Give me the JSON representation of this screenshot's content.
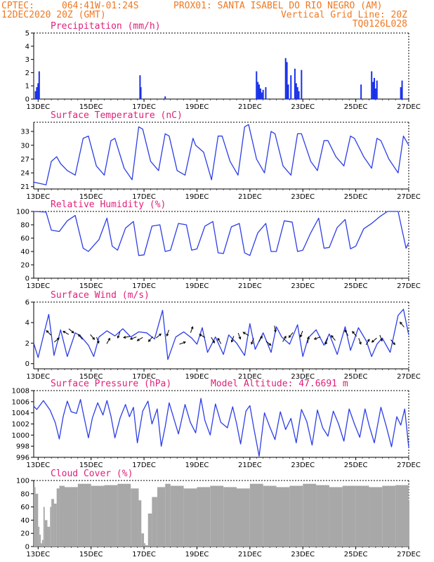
{
  "header": {
    "line1_left": "CPTEC:",
    "line1_coords": "064:41W-01:24S",
    "line1_station": "PROX01: SANTA ISABEL DO RIO NEGRO (AM)",
    "line2_left": "12DEC2020 20Z (GMT)",
    "line2_right": "Vertical Grid Line: 20Z",
    "line3_right": "TQ0126L028"
  },
  "colors": {
    "header_text": "#f07820",
    "panel_title": "#e0207a",
    "series_line": "#2d3ee6",
    "precip_bar": "#1830e8",
    "cloud_bar": "#a8a8a8",
    "wind_arrow": "#000000",
    "axis": "#000000"
  },
  "x_axis": {
    "start_time": "12DEC2020 20Z",
    "start_day": 12.833,
    "end_day": 27.0,
    "tick_days": [
      13,
      15,
      17,
      19,
      21,
      23,
      25,
      27
    ],
    "tick_labels": [
      "13DEC",
      "15DEC",
      "17DEC",
      "19DEC",
      "21DEC",
      "23DEC",
      "25DEC",
      "27DEC"
    ]
  },
  "chart_data": [
    {
      "id": "precip",
      "type": "bar",
      "title": "Precipitation (mm/h)",
      "ylim": [
        0,
        5
      ],
      "yticks": [
        0,
        1,
        2,
        3,
        4,
        5
      ],
      "grid": false,
      "x": [
        12.9,
        12.95,
        13.0,
        13.04,
        16.85,
        16.88,
        17.8,
        21.25,
        21.3,
        21.35,
        21.4,
        21.45,
        21.5,
        21.6,
        22.35,
        22.4,
        22.45,
        22.55,
        22.7,
        22.75,
        22.8,
        22.85,
        22.95,
        25.2,
        25.6,
        25.65,
        25.7,
        25.75,
        25.8,
        26.7,
        26.75
      ],
      "values": [
        0.6,
        0.9,
        1.2,
        2.1,
        1.8,
        0.9,
        0.2,
        2.1,
        1.3,
        1.1,
        0.8,
        0.5,
        0.7,
        0.9,
        3.1,
        2.8,
        1.1,
        1.8,
        2.3,
        1.2,
        0.9,
        0.6,
        2.2,
        1.1,
        2.1,
        1.3,
        1.6,
        0.8,
        1.4,
        0.9,
        1.4
      ]
    },
    {
      "id": "temperature",
      "type": "line",
      "title": "Surface Temperature (nC)",
      "ylim": [
        20.5,
        35
      ],
      "yticks": [
        21,
        24,
        27,
        30,
        33
      ],
      "grid": false,
      "x": [
        12.833,
        13.3,
        13.5,
        13.7,
        13.85,
        14.1,
        14.4,
        14.7,
        14.9,
        15.2,
        15.5,
        15.75,
        15.9,
        16.25,
        16.55,
        16.8,
        16.95,
        17.25,
        17.55,
        17.8,
        17.95,
        18.25,
        18.55,
        18.85,
        18.95,
        19.25,
        19.55,
        19.8,
        19.95,
        20.25,
        20.55,
        20.8,
        20.95,
        21.25,
        21.55,
        21.8,
        21.95,
        22.25,
        22.55,
        22.8,
        22.95,
        23.3,
        23.55,
        23.8,
        23.95,
        24.25,
        24.55,
        24.8,
        24.95,
        25.3,
        25.6,
        25.8,
        25.95,
        26.25,
        26.6,
        26.8,
        27.0
      ],
      "values": [
        22.0,
        21.4,
        26.5,
        27.5,
        26.0,
        24.5,
        23.5,
        31.5,
        32.0,
        25.5,
        23.5,
        31.0,
        31.5,
        25.0,
        22.5,
        34.0,
        33.5,
        26.5,
        24.5,
        32.5,
        32.0,
        24.5,
        23.5,
        31.5,
        30.0,
        28.5,
        22.5,
        32.0,
        32.0,
        26.5,
        23.5,
        34.0,
        34.5,
        27.0,
        24.0,
        33.0,
        32.5,
        25.5,
        23.5,
        32.5,
        32.5,
        26.5,
        24.5,
        31.0,
        31.0,
        27.5,
        25.5,
        32.0,
        31.5,
        27.5,
        25.0,
        31.5,
        31.0,
        27.0,
        24.0,
        32.0,
        30.0
      ]
    },
    {
      "id": "humidity",
      "type": "line",
      "title": "Relative Humidity (%)",
      "ylim": [
        0,
        100
      ],
      "yticks": [
        0,
        20,
        40,
        60,
        80,
        100
      ],
      "grid": false,
      "x": [
        12.833,
        13.3,
        13.5,
        13.8,
        14.1,
        14.4,
        14.7,
        14.9,
        15.3,
        15.6,
        15.8,
        16.0,
        16.3,
        16.6,
        16.8,
        17.0,
        17.3,
        17.6,
        17.8,
        18.0,
        18.3,
        18.6,
        18.8,
        19.0,
        19.3,
        19.6,
        19.8,
        20.0,
        20.3,
        20.6,
        20.8,
        21.0,
        21.3,
        21.6,
        21.8,
        22.0,
        22.3,
        22.6,
        22.8,
        23.0,
        23.3,
        23.6,
        23.8,
        24.0,
        24.3,
        24.6,
        24.8,
        25.0,
        25.3,
        25.6,
        25.9,
        26.2,
        26.6,
        26.75,
        26.9,
        27.0
      ],
      "values": [
        100.0,
        99.0,
        72.0,
        70.0,
        86.0,
        94.0,
        45.0,
        40.0,
        58.0,
        90.0,
        48.0,
        42.0,
        75.0,
        85.0,
        34.0,
        35.0,
        78.0,
        80.0,
        40.0,
        42.0,
        82.0,
        80.0,
        42.0,
        44.0,
        78.0,
        85.0,
        38.0,
        37.0,
        77.0,
        82.0,
        38.0,
        34.0,
        68.0,
        82.0,
        40.0,
        40.0,
        86.0,
        84.0,
        40.0,
        42.0,
        68.0,
        90.0,
        45.0,
        46.0,
        76.0,
        88.0,
        44.0,
        48.0,
        74.0,
        82.0,
        92.0,
        100.0,
        100.0,
        72.0,
        45.0,
        53.0
      ]
    },
    {
      "id": "wind",
      "type": "line",
      "title": "Surface Wind (m/s)",
      "ylim": [
        -0.5,
        6
      ],
      "yticks": [
        0,
        2,
        4,
        6
      ],
      "grid": false,
      "x": [
        12.833,
        13.0,
        13.2,
        13.4,
        13.6,
        13.85,
        14.1,
        14.4,
        14.6,
        14.9,
        15.1,
        15.3,
        15.6,
        15.9,
        16.2,
        16.5,
        16.8,
        17.1,
        17.4,
        17.7,
        17.9,
        18.2,
        18.5,
        18.8,
        19.0,
        19.2,
        19.4,
        19.7,
        20.0,
        20.2,
        20.5,
        20.8,
        21.0,
        21.2,
        21.5,
        21.8,
        22.0,
        22.2,
        22.5,
        22.8,
        23.0,
        23.2,
        23.5,
        23.8,
        24.0,
        24.3,
        24.6,
        24.8,
        25.1,
        25.4,
        25.6,
        25.8,
        26.0,
        26.3,
        26.6,
        26.8,
        27.0
      ],
      "values": [
        2.0,
        0.6,
        2.7,
        4.8,
        0.8,
        3.3,
        0.7,
        3.0,
        2.7,
        1.8,
        0.7,
        2.6,
        3.2,
        2.7,
        3.4,
        2.6,
        3.1,
        3.0,
        2.4,
        5.2,
        0.4,
        2.6,
        3.1,
        2.5,
        1.9,
        3.5,
        1.1,
        2.6,
        0.9,
        2.8,
        2.0,
        0.8,
        3.9,
        1.4,
        3.0,
        1.1,
        3.6,
        2.6,
        1.9,
        3.8,
        0.7,
        2.5,
        3.3,
        1.8,
        2.9,
        0.9,
        3.6,
        1.3,
        3.5,
        2.2,
        0.7,
        1.9,
        2.5,
        1.1,
        4.7,
        5.3,
        2.8
      ],
      "arrows": [
        {
          "x": 13.4,
          "y": 3.0,
          "dir": 315
        },
        {
          "x": 13.7,
          "y": 2.3,
          "dir": 50
        },
        {
          "x": 14.05,
          "y": 3.0,
          "dir": 300
        },
        {
          "x": 14.25,
          "y": 3.2,
          "dir": 130
        },
        {
          "x": 14.6,
          "y": 2.6,
          "dir": 320
        },
        {
          "x": 15.05,
          "y": 2.6,
          "dir": 140
        },
        {
          "x": 15.25,
          "y": 2.3,
          "dir": 160
        },
        {
          "x": 15.65,
          "y": 2.2,
          "dir": 30
        },
        {
          "x": 16.05,
          "y": 2.8,
          "dir": 200
        },
        {
          "x": 16.35,
          "y": 2.6,
          "dir": 260
        },
        {
          "x": 16.6,
          "y": 2.5,
          "dir": 250
        },
        {
          "x": 16.85,
          "y": 2.4,
          "dir": 240
        },
        {
          "x": 17.25,
          "y": 2.4,
          "dir": 220
        },
        {
          "x": 17.55,
          "y": 2.7,
          "dir": 50
        },
        {
          "x": 17.9,
          "y": 3.0,
          "dir": 200
        },
        {
          "x": 18.45,
          "y": 2.0,
          "dir": 70
        },
        {
          "x": 18.8,
          "y": 3.3,
          "dir": 20
        },
        {
          "x": 19.2,
          "y": 2.7,
          "dir": 300
        },
        {
          "x": 19.6,
          "y": 2.3,
          "dir": 150
        },
        {
          "x": 19.85,
          "y": 2.2,
          "dir": 330
        },
        {
          "x": 20.35,
          "y": 2.4,
          "dir": 200
        },
        {
          "x": 20.6,
          "y": 2.7,
          "dir": 160
        },
        {
          "x": 20.85,
          "y": 2.9,
          "dir": 300
        },
        {
          "x": 21.1,
          "y": 2.2,
          "dir": 200
        },
        {
          "x": 21.4,
          "y": 2.4,
          "dir": 30
        },
        {
          "x": 21.7,
          "y": 2.0,
          "dir": 130
        },
        {
          "x": 21.95,
          "y": 3.4,
          "dir": 170
        },
        {
          "x": 22.3,
          "y": 2.4,
          "dir": 30
        },
        {
          "x": 22.55,
          "y": 2.8,
          "dir": 220
        },
        {
          "x": 22.95,
          "y": 2.9,
          "dir": 200
        },
        {
          "x": 23.2,
          "y": 2.3,
          "dir": 10
        },
        {
          "x": 23.55,
          "y": 2.5,
          "dir": 250
        },
        {
          "x": 23.9,
          "y": 2.2,
          "dir": 200
        },
        {
          "x": 24.15,
          "y": 2.5,
          "dir": 320
        },
        {
          "x": 24.65,
          "y": 3.0,
          "dir": 330
        },
        {
          "x": 24.95,
          "y": 2.9,
          "dir": 320
        },
        {
          "x": 25.15,
          "y": 2.2,
          "dir": 160
        },
        {
          "x": 25.45,
          "y": 2.1,
          "dir": 30
        },
        {
          "x": 25.7,
          "y": 2.3,
          "dir": 230
        },
        {
          "x": 25.95,
          "y": 2.5,
          "dir": 160
        },
        {
          "x": 26.4,
          "y": 2.1,
          "dir": 140
        },
        {
          "x": 26.75,
          "y": 3.8,
          "dir": 320
        }
      ]
    },
    {
      "id": "pressure",
      "type": "line",
      "title": "Surface Pressure (hPa)",
      "subtitle": "Model Altitude: 47.6691 m",
      "ylim": [
        996,
        1008
      ],
      "yticks": [
        996,
        998,
        1000,
        1002,
        1004,
        1006,
        1008
      ],
      "grid": false,
      "x": [
        12.833,
        12.95,
        13.2,
        13.45,
        13.65,
        13.8,
        13.95,
        14.1,
        14.25,
        14.45,
        14.6,
        14.7,
        14.9,
        15.05,
        15.25,
        15.45,
        15.6,
        15.75,
        15.9,
        16.1,
        16.3,
        16.45,
        16.6,
        16.75,
        16.95,
        17.15,
        17.3,
        17.5,
        17.65,
        17.8,
        17.95,
        18.15,
        18.3,
        18.55,
        18.75,
        18.95,
        19.15,
        19.3,
        19.5,
        19.7,
        19.9,
        20.15,
        20.35,
        20.5,
        20.65,
        20.85,
        21.0,
        21.15,
        21.35,
        21.55,
        21.75,
        21.95,
        22.15,
        22.35,
        22.55,
        22.75,
        22.95,
        23.15,
        23.35,
        23.55,
        23.75,
        23.95,
        24.15,
        24.35,
        24.55,
        24.75,
        24.95,
        25.15,
        25.35,
        25.5,
        25.7,
        25.95,
        26.15,
        26.35,
        26.55,
        26.7,
        26.85,
        27.0
      ],
      "values": [
        1005.2,
        1004.6,
        1006.2,
        1004.5,
        1002.2,
        999.3,
        1003.4,
        1006.1,
        1004.2,
        1003.9,
        1006.4,
        1004.0,
        999.5,
        1003.1,
        1005.8,
        1003.6,
        1006.2,
        1003.4,
        999.5,
        1003.1,
        1005.5,
        1003.3,
        1005.0,
        998.6,
        1004.3,
        1006.1,
        1002.0,
        1004.7,
        998.0,
        1001.5,
        1005.8,
        1002.6,
        1000.2,
        1005.5,
        1002.3,
        1000.4,
        1006.6,
        1002.6,
        1000.0,
        1005.6,
        1002.3,
        1001.3,
        1005.1,
        1002.0,
        998.4,
        1004.3,
        1005.3,
        1001.2,
        996.2,
        1004.0,
        1001.5,
        999.2,
        1004.2,
        1001.0,
        1003.0,
        998.6,
        1004.6,
        1002.4,
        998.2,
        1004.5,
        1001.3,
        999.8,
        1004.3,
        1002.0,
        998.9,
        1004.7,
        1002.0,
        999.6,
        1004.7,
        1001.8,
        998.6,
        1005.0,
        1001.6,
        997.9,
        1003.3,
        1001.8,
        1004.7,
        997.8
      ]
    },
    {
      "id": "cloud",
      "type": "bar",
      "title": "Cloud Cover (%)",
      "ylim": [
        0,
        100
      ],
      "yticks": [
        0,
        20,
        40,
        60,
        80,
        100
      ],
      "grid": false,
      "x": [
        12.833,
        12.9,
        13.0,
        13.05,
        13.1,
        13.15,
        13.2,
        13.25,
        13.35,
        13.45,
        13.5,
        13.6,
        13.7,
        13.8,
        14.0,
        14.5,
        15.0,
        15.5,
        16.0,
        16.5,
        16.8,
        16.9,
        17.0,
        17.05,
        17.15,
        17.3,
        17.5,
        17.8,
        18.0,
        18.5,
        19.0,
        19.5,
        20.0,
        20.5,
        21.0,
        21.5,
        22.0,
        22.5,
        23.0,
        23.5,
        24.0,
        24.5,
        25.0,
        25.5,
        26.0,
        26.5,
        27.0
      ],
      "values": [
        90,
        80,
        30,
        18,
        5,
        10,
        60,
        40,
        30,
        60,
        72,
        65,
        88,
        92,
        90,
        95,
        92,
        93,
        95,
        88,
        70,
        20,
        5,
        2,
        50,
        75,
        90,
        95,
        92,
        88,
        90,
        92,
        90,
        88,
        95,
        92,
        90,
        92,
        95,
        93,
        90,
        92,
        92,
        90,
        92,
        93,
        70
      ]
    }
  ]
}
